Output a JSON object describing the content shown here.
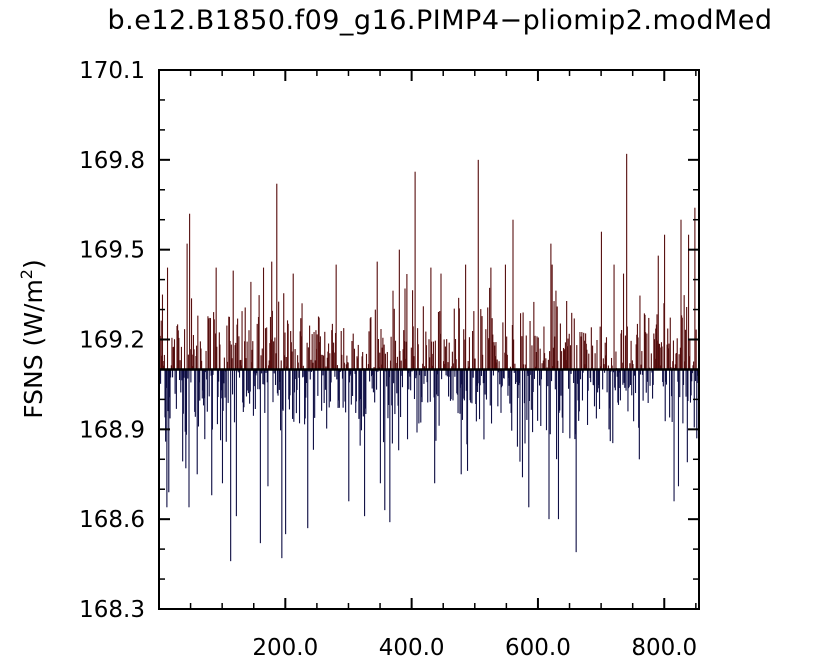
{
  "chart_data": {
    "type": "bar",
    "title": "b.e12.B1850.f09_g16.PIMP4−pliomip2.modMed",
    "ylabel": "FSNS (W/m²)",
    "ylabel_parts": {
      "main": "FSNS (W/m",
      "sup": "2",
      "close": ")"
    },
    "xlim": [
      0,
      855
    ],
    "ylim": [
      168.3,
      170.1
    ],
    "baseline": 169.1,
    "x_ticks": [
      200,
      400,
      600,
      800
    ],
    "x_tick_labels": [
      "200.0",
      "400.0",
      "600.0",
      "800.0"
    ],
    "y_ticks": [
      168.3,
      168.6,
      168.9,
      169.2,
      169.5,
      169.8,
      170.1
    ],
    "y_tick_labels": [
      "168.3",
      "168.6",
      "168.9",
      "169.2",
      "169.5",
      "169.8",
      "170.1"
    ],
    "positive_color": "#8b1a1a",
    "negative_color": "#1a1a6e",
    "n_points": 855,
    "std_estimate": 0.15,
    "peaks": [
      {
        "x": 5,
        "y": 169.35
      },
      {
        "x": 9,
        "y": 168.94
      },
      {
        "x": 12,
        "y": 168.64
      },
      {
        "x": 13,
        "y": 169.44
      },
      {
        "x": 15,
        "y": 168.69
      },
      {
        "x": 42,
        "y": 168.77
      },
      {
        "x": 44,
        "y": 169.52
      },
      {
        "x": 47,
        "y": 168.64
      },
      {
        "x": 48,
        "y": 169.62
      },
      {
        "x": 60,
        "y": 168.75
      },
      {
        "x": 83,
        "y": 168.68
      },
      {
        "x": 90,
        "y": 169.44
      },
      {
        "x": 100,
        "y": 168.72
      },
      {
        "x": 113,
        "y": 168.46
      },
      {
        "x": 117,
        "y": 169.43
      },
      {
        "x": 122,
        "y": 168.61
      },
      {
        "x": 160,
        "y": 168.52
      },
      {
        "x": 165,
        "y": 169.44
      },
      {
        "x": 172,
        "y": 168.71
      },
      {
        "x": 178,
        "y": 169.46
      },
      {
        "x": 186,
        "y": 169.72
      },
      {
        "x": 194,
        "y": 168.47
      },
      {
        "x": 200,
        "y": 168.55
      },
      {
        "x": 212,
        "y": 169.42
      },
      {
        "x": 235,
        "y": 168.57
      },
      {
        "x": 280,
        "y": 169.45
      },
      {
        "x": 300,
        "y": 168.66
      },
      {
        "x": 325,
        "y": 168.61
      },
      {
        "x": 345,
        "y": 169.46
      },
      {
        "x": 357,
        "y": 168.63
      },
      {
        "x": 365,
        "y": 168.59
      },
      {
        "x": 380,
        "y": 169.5
      },
      {
        "x": 405,
        "y": 169.76
      },
      {
        "x": 430,
        "y": 169.44
      },
      {
        "x": 436,
        "y": 168.72
      },
      {
        "x": 478,
        "y": 168.75
      },
      {
        "x": 485,
        "y": 169.45
      },
      {
        "x": 505,
        "y": 169.8
      },
      {
        "x": 525,
        "y": 169.44
      },
      {
        "x": 548,
        "y": 169.45
      },
      {
        "x": 560,
        "y": 169.6
      },
      {
        "x": 575,
        "y": 168.74
      },
      {
        "x": 585,
        "y": 168.64
      },
      {
        "x": 617,
        "y": 168.6
      },
      {
        "x": 620,
        "y": 169.52
      },
      {
        "x": 622,
        "y": 169.45
      },
      {
        "x": 632,
        "y": 168.6
      },
      {
        "x": 650,
        "y": 168.87
      },
      {
        "x": 660,
        "y": 168.49
      },
      {
        "x": 700,
        "y": 169.56
      },
      {
        "x": 712,
        "y": 168.9
      },
      {
        "x": 720,
        "y": 169.45
      },
      {
        "x": 740,
        "y": 169.82
      },
      {
        "x": 760,
        "y": 168.8
      },
      {
        "x": 790,
        "y": 169.48
      },
      {
        "x": 800,
        "y": 169.55
      },
      {
        "x": 815,
        "y": 168.66
      },
      {
        "x": 822,
        "y": 168.71
      },
      {
        "x": 826,
        "y": 169.6
      },
      {
        "x": 838,
        "y": 169.55
      },
      {
        "x": 848,
        "y": 169.64
      },
      {
        "x": 851,
        "y": 168.87
      }
    ]
  }
}
